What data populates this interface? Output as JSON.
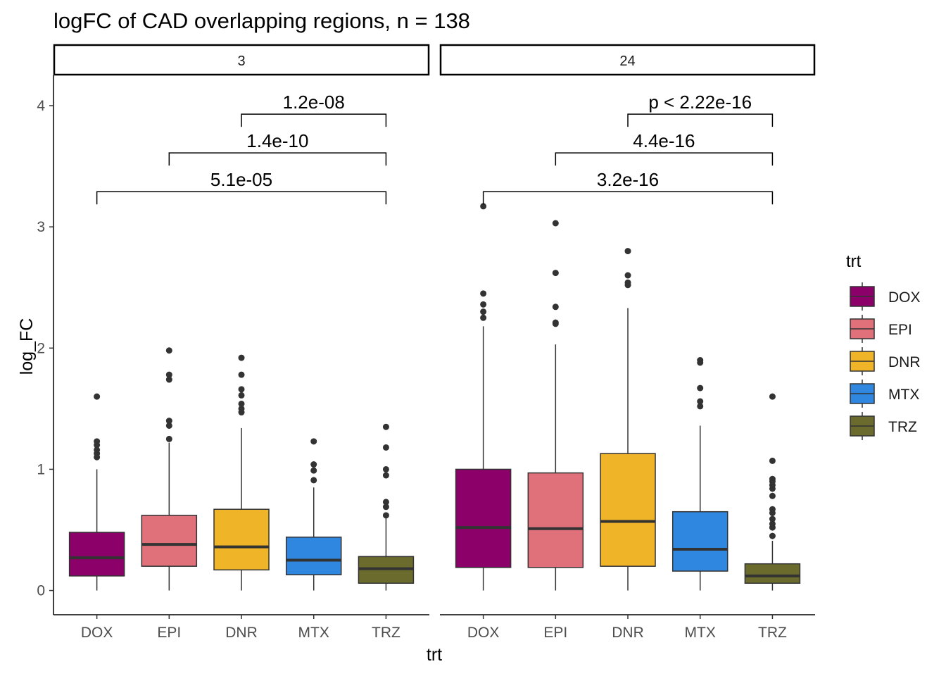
{
  "chart_data": {
    "type": "boxplot",
    "title": "logFC of CAD overlapping regions, n = 138",
    "xlabel": "trt",
    "ylabel": "log_FC",
    "ylim": [
      -0.2,
      4.25
    ],
    "yticks": [
      0,
      1,
      2,
      3,
      4
    ],
    "categories": [
      "DOX",
      "EPI",
      "DNR",
      "MTX",
      "TRZ"
    ],
    "colors": {
      "DOX": "#8B0069",
      "EPI": "#E07079",
      "DNR": "#F0B429",
      "MTX": "#3087E0",
      "TRZ": "#6B6B2E"
    },
    "legend": {
      "title": "trt",
      "position": "right",
      "entries": [
        "DOX",
        "EPI",
        "DNR",
        "MTX",
        "TRZ"
      ]
    },
    "grid": false,
    "facets": [
      {
        "label": "3",
        "boxes": [
          {
            "group": "DOX",
            "q1": 0.12,
            "median": 0.27,
            "q3": 0.48,
            "whisker_low": 0.0,
            "whisker_high": 1.0,
            "outliers": [
              1.1,
              1.13,
              1.16,
              1.2,
              1.23,
              1.6
            ]
          },
          {
            "group": "EPI",
            "q1": 0.2,
            "median": 0.38,
            "q3": 0.62,
            "whisker_low": 0.0,
            "whisker_high": 1.22,
            "outliers": [
              1.25,
              1.36,
              1.4,
              1.74,
              1.78,
              1.98
            ]
          },
          {
            "group": "DNR",
            "q1": 0.17,
            "median": 0.36,
            "q3": 0.67,
            "whisker_low": 0.0,
            "whisker_high": 1.34,
            "outliers": [
              1.47,
              1.5,
              1.54,
              1.61,
              1.66,
              1.78,
              1.92
            ]
          },
          {
            "group": "MTX",
            "q1": 0.13,
            "median": 0.25,
            "q3": 0.44,
            "whisker_low": 0.0,
            "whisker_high": 0.85,
            "outliers": [
              0.91,
              0.99,
              1.04,
              1.23
            ]
          },
          {
            "group": "TRZ",
            "q1": 0.06,
            "median": 0.18,
            "q3": 0.28,
            "whisker_low": 0.0,
            "whisker_high": 0.6,
            "outliers": [
              0.62,
              0.69,
              0.73,
              0.95,
              1.0,
              1.18,
              1.35
            ]
          }
        ],
        "comparisons": [
          {
            "from": "DNR",
            "to": "TRZ",
            "y": 3.93,
            "label": "1.2e-08"
          },
          {
            "from": "EPI",
            "to": "TRZ",
            "y": 3.61,
            "label": "1.4e-10"
          },
          {
            "from": "DOX",
            "to": "TRZ",
            "y": 3.29,
            "label": "5.1e-05"
          }
        ]
      },
      {
        "label": "24",
        "boxes": [
          {
            "group": "DOX",
            "q1": 0.19,
            "median": 0.52,
            "q3": 1.0,
            "whisker_low": 0.0,
            "whisker_high": 2.18,
            "outliers": [
              2.25,
              2.3,
              2.36,
              2.45,
              3.17
            ]
          },
          {
            "group": "EPI",
            "q1": 0.19,
            "median": 0.51,
            "q3": 0.97,
            "whisker_low": 0.0,
            "whisker_high": 2.03,
            "outliers": [
              2.2,
              2.21,
              2.34,
              2.62,
              3.03
            ]
          },
          {
            "group": "DNR",
            "q1": 0.2,
            "median": 0.57,
            "q3": 1.13,
            "whisker_low": 0.0,
            "whisker_high": 2.33,
            "outliers": [
              2.52,
              2.54,
              2.6,
              2.8
            ]
          },
          {
            "group": "MTX",
            "q1": 0.16,
            "median": 0.34,
            "q3": 0.65,
            "whisker_low": 0.0,
            "whisker_high": 1.36,
            "outliers": [
              1.52,
              1.56,
              1.67,
              1.88,
              1.9
            ]
          },
          {
            "group": "TRZ",
            "q1": 0.06,
            "median": 0.12,
            "q3": 0.22,
            "whisker_low": 0.0,
            "whisker_high": 0.41,
            "outliers": [
              0.45,
              0.52,
              0.55,
              0.59,
              0.64,
              0.67,
              0.78,
              0.84,
              0.87,
              0.9,
              0.92,
              1.07,
              1.6
            ]
          }
        ],
        "comparisons": [
          {
            "from": "DNR",
            "to": "TRZ",
            "y": 3.93,
            "label": "p < 2.22e-16"
          },
          {
            "from": "EPI",
            "to": "TRZ",
            "y": 3.61,
            "label": "4.4e-16"
          },
          {
            "from": "DOX",
            "to": "TRZ",
            "y": 3.29,
            "label": "3.2e-16"
          }
        ]
      }
    ]
  }
}
